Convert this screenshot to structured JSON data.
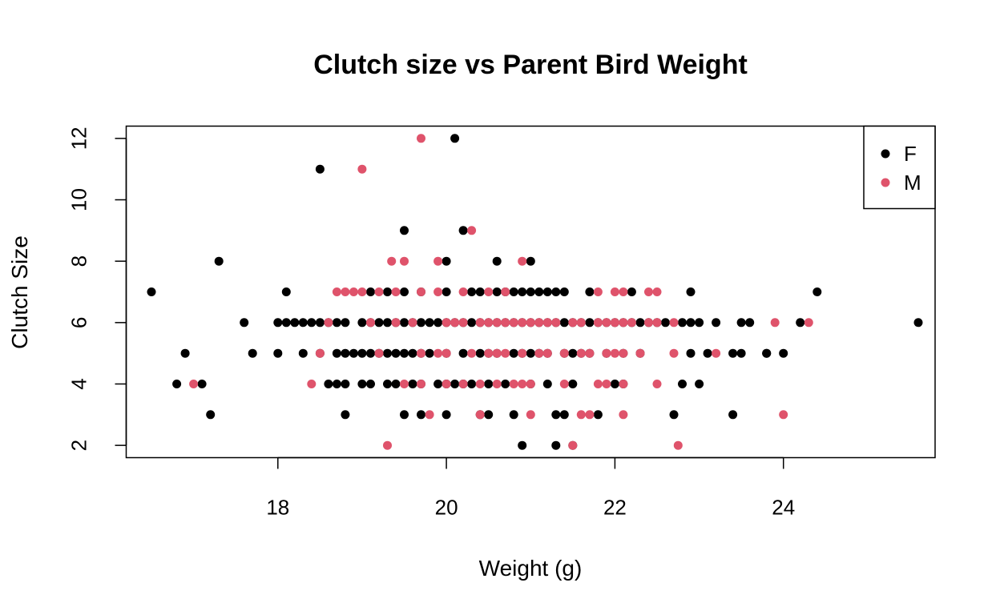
{
  "chart_data": {
    "type": "scatter",
    "title": "Clutch size vs Parent Bird Weight",
    "xlabel": "Weight (g)",
    "ylabel": "Clutch Size",
    "xlim": [
      16.2,
      25.8
    ],
    "ylim": [
      1.6,
      12.4
    ],
    "x_ticks": [
      18,
      20,
      22,
      24
    ],
    "y_ticks": [
      2,
      4,
      6,
      8,
      10,
      12
    ],
    "grid": false,
    "legend_position": "top-right",
    "series": [
      {
        "name": "F",
        "color": "#000000",
        "points": [
          [
            16.5,
            7
          ],
          [
            16.9,
            5
          ],
          [
            16.8,
            4
          ],
          [
            17.1,
            4
          ],
          [
            17.2,
            3
          ],
          [
            17.3,
            8
          ],
          [
            17.6,
            6
          ],
          [
            17.7,
            5
          ],
          [
            18.0,
            6
          ],
          [
            18.0,
            5
          ],
          [
            18.1,
            7
          ],
          [
            18.1,
            6
          ],
          [
            18.2,
            6
          ],
          [
            18.3,
            6
          ],
          [
            18.3,
            5
          ],
          [
            18.4,
            6
          ],
          [
            18.5,
            11
          ],
          [
            18.5,
            6
          ],
          [
            18.5,
            5
          ],
          [
            18.6,
            6
          ],
          [
            18.6,
            4
          ],
          [
            18.7,
            6
          ],
          [
            18.7,
            5
          ],
          [
            18.7,
            4
          ],
          [
            18.8,
            6
          ],
          [
            18.8,
            5
          ],
          [
            18.8,
            4
          ],
          [
            18.8,
            3
          ],
          [
            18.9,
            5
          ],
          [
            19.0,
            6
          ],
          [
            19.0,
            5
          ],
          [
            19.0,
            4
          ],
          [
            19.1,
            7
          ],
          [
            19.1,
            6
          ],
          [
            19.1,
            5
          ],
          [
            19.1,
            4
          ],
          [
            19.2,
            6
          ],
          [
            19.2,
            5
          ],
          [
            19.3,
            7
          ],
          [
            19.3,
            6
          ],
          [
            19.3,
            5
          ],
          [
            19.3,
            4
          ],
          [
            19.4,
            6
          ],
          [
            19.4,
            5
          ],
          [
            19.4,
            4
          ],
          [
            19.5,
            9
          ],
          [
            19.5,
            7
          ],
          [
            19.5,
            6
          ],
          [
            19.5,
            5
          ],
          [
            19.5,
            3
          ],
          [
            19.6,
            6
          ],
          [
            19.6,
            5
          ],
          [
            19.6,
            4
          ],
          [
            19.7,
            7
          ],
          [
            19.7,
            6
          ],
          [
            19.7,
            5
          ],
          [
            19.7,
            4
          ],
          [
            19.7,
            3
          ],
          [
            19.8,
            6
          ],
          [
            19.8,
            5
          ],
          [
            19.9,
            6
          ],
          [
            19.9,
            4
          ],
          [
            20.0,
            8
          ],
          [
            20.0,
            7
          ],
          [
            20.0,
            6
          ],
          [
            20.0,
            5
          ],
          [
            20.0,
            4
          ],
          [
            20.0,
            3
          ],
          [
            20.1,
            12
          ],
          [
            20.1,
            6
          ],
          [
            20.1,
            4
          ],
          [
            20.2,
            9
          ],
          [
            20.2,
            6
          ],
          [
            20.2,
            5
          ],
          [
            20.2,
            4
          ],
          [
            20.3,
            7
          ],
          [
            20.3,
            6
          ],
          [
            20.3,
            4
          ],
          [
            20.4,
            7
          ],
          [
            20.4,
            6
          ],
          [
            20.4,
            5
          ],
          [
            20.4,
            3
          ],
          [
            20.5,
            6
          ],
          [
            20.5,
            5
          ],
          [
            20.5,
            4
          ],
          [
            20.5,
            3
          ],
          [
            20.6,
            8
          ],
          [
            20.6,
            7
          ],
          [
            20.6,
            6
          ],
          [
            20.6,
            5
          ],
          [
            20.7,
            7
          ],
          [
            20.7,
            6
          ],
          [
            20.7,
            4
          ],
          [
            20.8,
            7
          ],
          [
            20.8,
            6
          ],
          [
            20.8,
            5
          ],
          [
            20.8,
            3
          ],
          [
            20.9,
            7
          ],
          [
            20.9,
            6
          ],
          [
            20.9,
            5
          ],
          [
            20.9,
            2
          ],
          [
            21.0,
            8
          ],
          [
            21.0,
            7
          ],
          [
            21.0,
            6
          ],
          [
            21.0,
            5
          ],
          [
            21.0,
            4
          ],
          [
            21.1,
            7
          ],
          [
            21.1,
            6
          ],
          [
            21.1,
            5
          ],
          [
            21.2,
            7
          ],
          [
            21.2,
            6
          ],
          [
            21.2,
            5
          ],
          [
            21.2,
            4
          ],
          [
            21.3,
            7
          ],
          [
            21.3,
            6
          ],
          [
            21.3,
            2
          ],
          [
            21.3,
            3
          ],
          [
            21.4,
            7
          ],
          [
            21.4,
            6
          ],
          [
            21.4,
            5
          ],
          [
            21.4,
            3
          ],
          [
            21.5,
            6
          ],
          [
            21.5,
            5
          ],
          [
            21.5,
            4
          ],
          [
            21.5,
            2
          ],
          [
            21.6,
            6
          ],
          [
            21.6,
            5
          ],
          [
            21.7,
            7
          ],
          [
            21.7,
            6
          ],
          [
            21.7,
            5
          ],
          [
            21.8,
            6
          ],
          [
            21.8,
            3
          ],
          [
            21.9,
            6
          ],
          [
            21.9,
            5
          ],
          [
            22.0,
            6
          ],
          [
            22.0,
            4
          ],
          [
            22.1,
            6
          ],
          [
            22.1,
            5
          ],
          [
            22.1,
            4
          ],
          [
            22.2,
            7
          ],
          [
            22.2,
            6
          ],
          [
            22.3,
            6
          ],
          [
            22.3,
            5
          ],
          [
            22.4,
            6
          ],
          [
            22.5,
            6
          ],
          [
            22.6,
            6
          ],
          [
            22.7,
            3
          ],
          [
            22.8,
            6
          ],
          [
            22.8,
            4
          ],
          [
            22.9,
            7
          ],
          [
            22.9,
            6
          ],
          [
            22.9,
            5
          ],
          [
            23.0,
            6
          ],
          [
            23.0,
            4
          ],
          [
            23.1,
            5
          ],
          [
            23.2,
            6
          ],
          [
            23.4,
            5
          ],
          [
            23.4,
            3
          ],
          [
            23.5,
            6
          ],
          [
            23.5,
            5
          ],
          [
            23.6,
            6
          ],
          [
            23.8,
            5
          ],
          [
            23.8,
            5
          ],
          [
            24.0,
            5
          ],
          [
            24.2,
            6
          ],
          [
            24.4,
            7
          ],
          [
            25.6,
            6
          ]
        ]
      },
      {
        "name": "M",
        "color": "#DF536B",
        "points": [
          [
            17.0,
            4
          ],
          [
            18.4,
            4
          ],
          [
            18.5,
            5
          ],
          [
            18.6,
            6
          ],
          [
            18.7,
            7
          ],
          [
            18.8,
            7
          ],
          [
            18.9,
            7
          ],
          [
            19.0,
            11
          ],
          [
            19.0,
            7
          ],
          [
            19.1,
            6
          ],
          [
            19.2,
            7
          ],
          [
            19.2,
            5
          ],
          [
            19.3,
            2
          ],
          [
            19.35,
            8
          ],
          [
            19.4,
            7
          ],
          [
            19.4,
            6
          ],
          [
            19.5,
            8
          ],
          [
            19.5,
            4
          ],
          [
            19.6,
            6
          ],
          [
            19.7,
            12
          ],
          [
            19.7,
            7
          ],
          [
            19.7,
            5
          ],
          [
            19.7,
            4
          ],
          [
            19.8,
            3
          ],
          [
            19.9,
            8
          ],
          [
            19.9,
            7
          ],
          [
            19.9,
            5
          ],
          [
            20.0,
            6
          ],
          [
            20.0,
            5
          ],
          [
            20.0,
            4
          ],
          [
            20.1,
            6
          ],
          [
            20.2,
            7
          ],
          [
            20.2,
            6
          ],
          [
            20.2,
            4
          ],
          [
            20.3,
            9
          ],
          [
            20.3,
            5
          ],
          [
            20.4,
            6
          ],
          [
            20.4,
            4
          ],
          [
            20.4,
            3
          ],
          [
            20.5,
            7
          ],
          [
            20.5,
            6
          ],
          [
            20.5,
            5
          ],
          [
            20.6,
            6
          ],
          [
            20.6,
            5
          ],
          [
            20.6,
            4
          ],
          [
            20.7,
            7
          ],
          [
            20.7,
            6
          ],
          [
            20.7,
            5
          ],
          [
            20.8,
            6
          ],
          [
            20.8,
            4
          ],
          [
            20.9,
            8
          ],
          [
            20.9,
            6
          ],
          [
            20.9,
            5
          ],
          [
            20.9,
            4
          ],
          [
            21.0,
            6
          ],
          [
            21.0,
            3
          ],
          [
            21.0,
            4
          ],
          [
            21.1,
            6
          ],
          [
            21.1,
            5
          ],
          [
            21.2,
            5
          ],
          [
            21.2,
            6
          ],
          [
            21.3,
            6
          ],
          [
            21.4,
            5
          ],
          [
            21.4,
            4
          ],
          [
            21.5,
            6
          ],
          [
            21.5,
            2
          ],
          [
            21.6,
            6
          ],
          [
            21.6,
            5
          ],
          [
            21.6,
            3
          ],
          [
            21.7,
            5
          ],
          [
            21.7,
            3
          ],
          [
            21.8,
            7
          ],
          [
            21.8,
            6
          ],
          [
            21.8,
            4
          ],
          [
            21.9,
            6
          ],
          [
            21.9,
            5
          ],
          [
            21.9,
            4
          ],
          [
            22.0,
            7
          ],
          [
            22.0,
            6
          ],
          [
            22.0,
            5
          ],
          [
            22.1,
            7
          ],
          [
            22.1,
            6
          ],
          [
            22.1,
            5
          ],
          [
            22.1,
            4
          ],
          [
            22.1,
            3
          ],
          [
            22.2,
            6
          ],
          [
            22.3,
            5
          ],
          [
            22.4,
            7
          ],
          [
            22.4,
            6
          ],
          [
            22.5,
            7
          ],
          [
            22.5,
            6
          ],
          [
            22.5,
            4
          ],
          [
            22.7,
            6
          ],
          [
            22.7,
            5
          ],
          [
            22.75,
            2
          ],
          [
            23.2,
            5
          ],
          [
            23.9,
            6
          ],
          [
            24.0,
            3
          ],
          [
            24.3,
            6
          ]
        ]
      }
    ]
  }
}
